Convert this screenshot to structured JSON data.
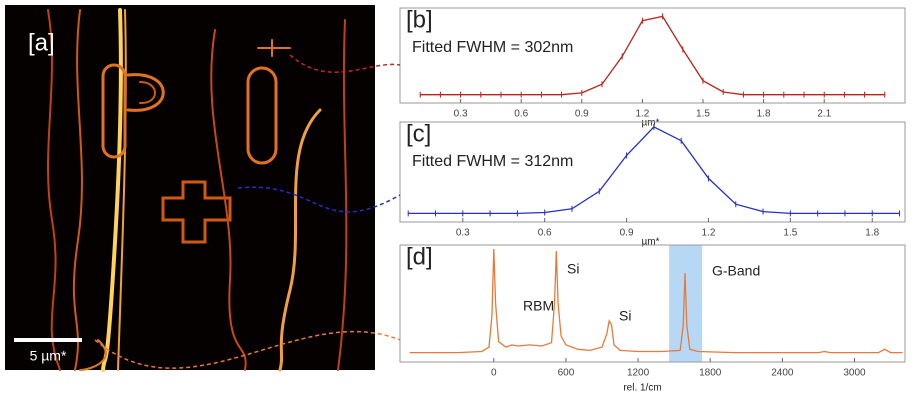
{
  "image_panel": {
    "label": "[a]",
    "scale_bar": "5 µm*"
  },
  "chart_data": [
    {
      "type": "line",
      "title": "[b]",
      "annotation": "Fitted FWHM = 302nm",
      "xlabel": "µm*",
      "x": [
        0.1,
        0.2,
        0.3,
        0.4,
        0.5,
        0.6,
        0.7,
        0.8,
        0.9,
        1.0,
        1.1,
        1.2,
        1.3,
        1.4,
        1.5,
        1.6,
        1.7,
        1.8,
        1.9,
        2.0,
        2.1,
        2.2,
        2.3,
        2.4
      ],
      "series": [
        {
          "color": "#b8241c",
          "values": [
            0.05,
            0.05,
            0.05,
            0.05,
            0.05,
            0.05,
            0.05,
            0.05,
            0.07,
            0.17,
            0.49,
            0.9,
            0.95,
            0.57,
            0.21,
            0.08,
            0.05,
            0.05,
            0.05,
            0.05,
            0.05,
            0.05,
            0.05,
            0.05
          ]
        }
      ],
      "xlim": [
        0,
        2.5
      ],
      "xticks": [
        0.3,
        0.6,
        0.9,
        1.2,
        1.5,
        1.8,
        2.1
      ],
      "ylim": [
        0,
        1
      ]
    },
    {
      "type": "line",
      "title": "[c]",
      "annotation": "Fitted FWHM = 312nm",
      "xlabel": "µm*",
      "x": [
        0.1,
        0.2,
        0.3,
        0.4,
        0.5,
        0.6,
        0.7,
        0.8,
        0.9,
        1.0,
        1.1,
        1.2,
        1.3,
        1.4,
        1.5,
        1.6,
        1.7,
        1.8,
        1.9
      ],
      "series": [
        {
          "color": "#2430c8",
          "values": [
            0.05,
            0.05,
            0.05,
            0.05,
            0.05,
            0.06,
            0.1,
            0.29,
            0.68,
            0.99,
            0.84,
            0.43,
            0.15,
            0.07,
            0.05,
            0.05,
            0.05,
            0.05,
            0.05
          ]
        }
      ],
      "xlim": [
        0.07,
        1.92
      ],
      "xticks": [
        0.3,
        0.6,
        0.9,
        1.2,
        1.5,
        1.8
      ],
      "ylim": [
        0,
        1
      ]
    },
    {
      "type": "line",
      "title": "[d]",
      "xlabel": "rel. 1/cm",
      "annotations": [
        "RBM",
        "Si",
        "Si",
        "G-Band"
      ],
      "highlight": {
        "range": [
          1458,
          1733
        ],
        "color": "#a9d1f2"
      },
      "x": [
        -700,
        -300,
        -100,
        -40,
        -15,
        0,
        15,
        40,
        100,
        150,
        200,
        300,
        400,
        480,
        505,
        520,
        535,
        560,
        600,
        700,
        800,
        900,
        940,
        960,
        980,
        1000,
        1050,
        1200,
        1400,
        1550,
        1575,
        1590,
        1605,
        1630,
        1700,
        2000,
        2400,
        2700,
        2750,
        2800,
        3000,
        3200,
        3250,
        3300,
        3400
      ],
      "series": [
        {
          "color": "#e8793a",
          "values": [
            0.05,
            0.05,
            0.06,
            0.1,
            0.4,
            1.0,
            0.5,
            0.15,
            0.1,
            0.12,
            0.11,
            0.12,
            0.11,
            0.14,
            0.5,
            0.98,
            0.5,
            0.2,
            0.12,
            0.08,
            0.07,
            0.1,
            0.22,
            0.34,
            0.3,
            0.12,
            0.07,
            0.06,
            0.06,
            0.07,
            0.3,
            0.78,
            0.3,
            0.08,
            0.06,
            0.05,
            0.05,
            0.05,
            0.06,
            0.05,
            0.05,
            0.05,
            0.08,
            0.05,
            0.05
          ]
        }
      ],
      "xlim": [
        -780,
        3420
      ],
      "xticks": [
        0,
        600,
        1200,
        1800,
        2400,
        3000
      ],
      "ylim": [
        0,
        1
      ]
    }
  ]
}
